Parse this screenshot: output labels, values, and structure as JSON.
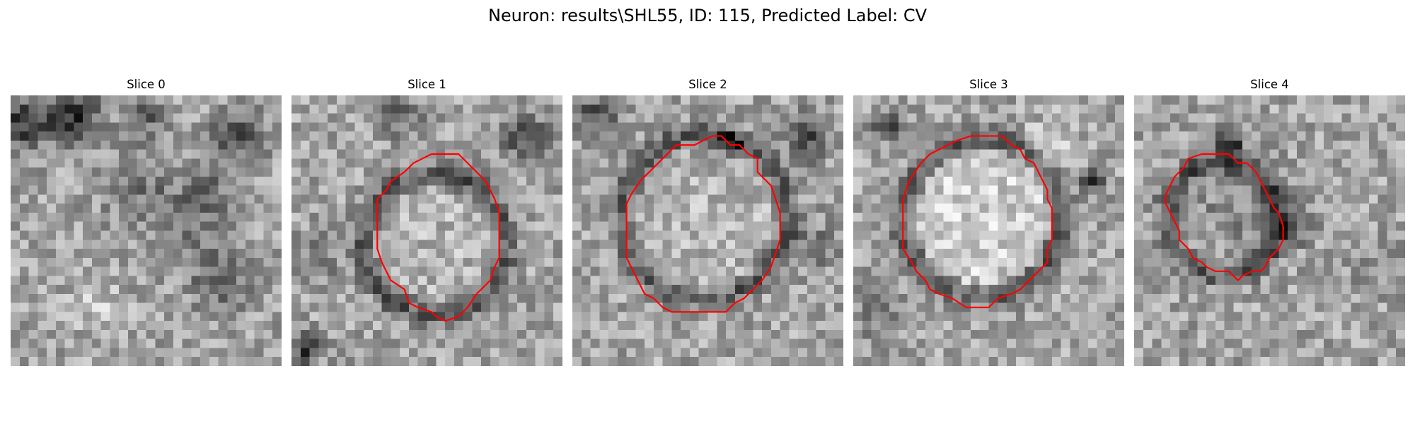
{
  "figure": {
    "title": "Neuron: results\\SHL55, ID: 115, Predicted Label: CV"
  },
  "panels": [
    {
      "title": "Slice 0",
      "image": "grayscale-microscopy-slice",
      "contour": null
    },
    {
      "title": "Slice 1",
      "image": "grayscale-microscopy-slice",
      "contour": {
        "color": "#ff0000",
        "points": [
          [
            15.5,
            6.5
          ],
          [
            18.5,
            6.5
          ],
          [
            21.5,
            9.5
          ],
          [
            22.5,
            11.5
          ],
          [
            23.0,
            13.0
          ],
          [
            23.0,
            18.0
          ],
          [
            22.5,
            19.0
          ],
          [
            22.0,
            20.5
          ],
          [
            20.5,
            22.0
          ],
          [
            19.5,
            23.5
          ],
          [
            18.5,
            24.5
          ],
          [
            17.0,
            25.0
          ],
          [
            16.0,
            24.5
          ],
          [
            15.5,
            24.0
          ],
          [
            14.0,
            23.5
          ],
          [
            13.0,
            23.0
          ],
          [
            12.5,
            21.5
          ],
          [
            11.0,
            20.5
          ],
          [
            10.5,
            19.5
          ],
          [
            10.0,
            18.5
          ],
          [
            9.5,
            17.0
          ],
          [
            9.5,
            11.5
          ],
          [
            10.5,
            10.5
          ],
          [
            11.0,
            9.5
          ],
          [
            12.5,
            8.5
          ],
          [
            13.5,
            7.5
          ],
          [
            15.5,
            6.5
          ]
        ]
      }
    },
    {
      "title": "Slice 2",
      "image": "grayscale-microscopy-slice",
      "contour": {
        "color": "#ff0000",
        "points": [
          [
            15.5,
            4.5
          ],
          [
            16.5,
            4.5
          ],
          [
            17.5,
            5.5
          ],
          [
            18.5,
            5.5
          ],
          [
            19.5,
            6.5
          ],
          [
            20.5,
            7.0
          ],
          [
            20.5,
            8.5
          ],
          [
            22.0,
            10.0
          ],
          [
            22.5,
            11.5
          ],
          [
            23.0,
            13.0
          ],
          [
            23.0,
            16.0
          ],
          [
            22.5,
            17.5
          ],
          [
            22.0,
            19.0
          ],
          [
            21.0,
            20.5
          ],
          [
            20.0,
            21.5
          ],
          [
            19.0,
            22.5
          ],
          [
            18.0,
            23.0
          ],
          [
            17.0,
            24.0
          ],
          [
            11.0,
            24.0
          ],
          [
            10.0,
            23.5
          ],
          [
            9.0,
            22.5
          ],
          [
            8.0,
            22.0
          ],
          [
            7.5,
            21.0
          ],
          [
            7.0,
            20.0
          ],
          [
            6.5,
            19.0
          ],
          [
            6.0,
            18.0
          ],
          [
            6.0,
            12.0
          ],
          [
            6.5,
            11.0
          ],
          [
            7.5,
            9.5
          ],
          [
            8.5,
            8.5
          ],
          [
            9.5,
            7.5
          ],
          [
            10.5,
            6.5
          ],
          [
            11.5,
            5.5
          ],
          [
            13.5,
            5.5
          ],
          [
            14.5,
            5.0
          ],
          [
            15.5,
            4.5
          ]
        ]
      }
    },
    {
      "title": "Slice 3",
      "image": "grayscale-microscopy-slice",
      "contour": {
        "color": "#ff0000",
        "points": [
          [
            13.0,
            4.5
          ],
          [
            16.5,
            4.5
          ],
          [
            17.5,
            5.5
          ],
          [
            18.5,
            6.0
          ],
          [
            19.0,
            7.0
          ],
          [
            20.0,
            7.5
          ],
          [
            20.5,
            8.5
          ],
          [
            21.0,
            9.5
          ],
          [
            21.5,
            10.5
          ],
          [
            21.5,
            11.5
          ],
          [
            22.0,
            12.5
          ],
          [
            22.0,
            16.0
          ],
          [
            21.5,
            17.0
          ],
          [
            21.5,
            18.5
          ],
          [
            20.5,
            19.5
          ],
          [
            19.5,
            20.5
          ],
          [
            18.5,
            21.5
          ],
          [
            17.5,
            22.0
          ],
          [
            16.0,
            22.5
          ],
          [
            15.0,
            23.5
          ],
          [
            12.5,
            23.5
          ],
          [
            11.0,
            22.5
          ],
          [
            9.5,
            22.0
          ],
          [
            8.5,
            21.5
          ],
          [
            8.0,
            20.5
          ],
          [
            7.0,
            19.5
          ],
          [
            6.5,
            18.5
          ],
          [
            5.5,
            17.0
          ],
          [
            5.5,
            11.5
          ],
          [
            6.0,
            10.0
          ],
          [
            6.5,
            9.0
          ],
          [
            7.5,
            7.5
          ],
          [
            8.5,
            6.5
          ],
          [
            9.5,
            6.0
          ],
          [
            10.5,
            5.5
          ],
          [
            11.5,
            5.0
          ],
          [
            13.0,
            4.5
          ]
        ]
      }
    },
    {
      "title": "Slice 4",
      "image": "grayscale-microscopy-slice",
      "contour": {
        "color": "#ff0000",
        "points": [
          [
            7.5,
            6.5
          ],
          [
            10.5,
            6.5
          ],
          [
            11.5,
            7.5
          ],
          [
            12.5,
            7.5
          ],
          [
            13.5,
            8.5
          ],
          [
            14.0,
            9.5
          ],
          [
            14.5,
            10.5
          ],
          [
            15.0,
            11.5
          ],
          [
            15.5,
            12.5
          ],
          [
            16.0,
            13.0
          ],
          [
            16.5,
            14.5
          ],
          [
            16.5,
            16.0
          ],
          [
            16.0,
            17.0
          ],
          [
            15.0,
            18.0
          ],
          [
            14.5,
            19.0
          ],
          [
            14.0,
            19.5
          ],
          [
            13.0,
            19.5
          ],
          [
            12.0,
            20.0
          ],
          [
            11.5,
            20.5
          ],
          [
            10.5,
            19.5
          ],
          [
            9.0,
            19.5
          ],
          [
            8.0,
            19.0
          ],
          [
            7.5,
            18.5
          ],
          [
            6.5,
            18.0
          ],
          [
            6.0,
            17.0
          ],
          [
            5.5,
            16.5
          ],
          [
            5.0,
            16.0
          ],
          [
            5.0,
            15.0
          ],
          [
            4.5,
            14.0
          ],
          [
            4.0,
            13.0
          ],
          [
            3.5,
            12.0
          ],
          [
            3.5,
            11.0
          ],
          [
            4.0,
            10.0
          ],
          [
            4.5,
            9.0
          ],
          [
            5.5,
            8.0
          ],
          [
            6.0,
            7.0
          ],
          [
            7.5,
            6.5
          ]
        ]
      }
    }
  ]
}
